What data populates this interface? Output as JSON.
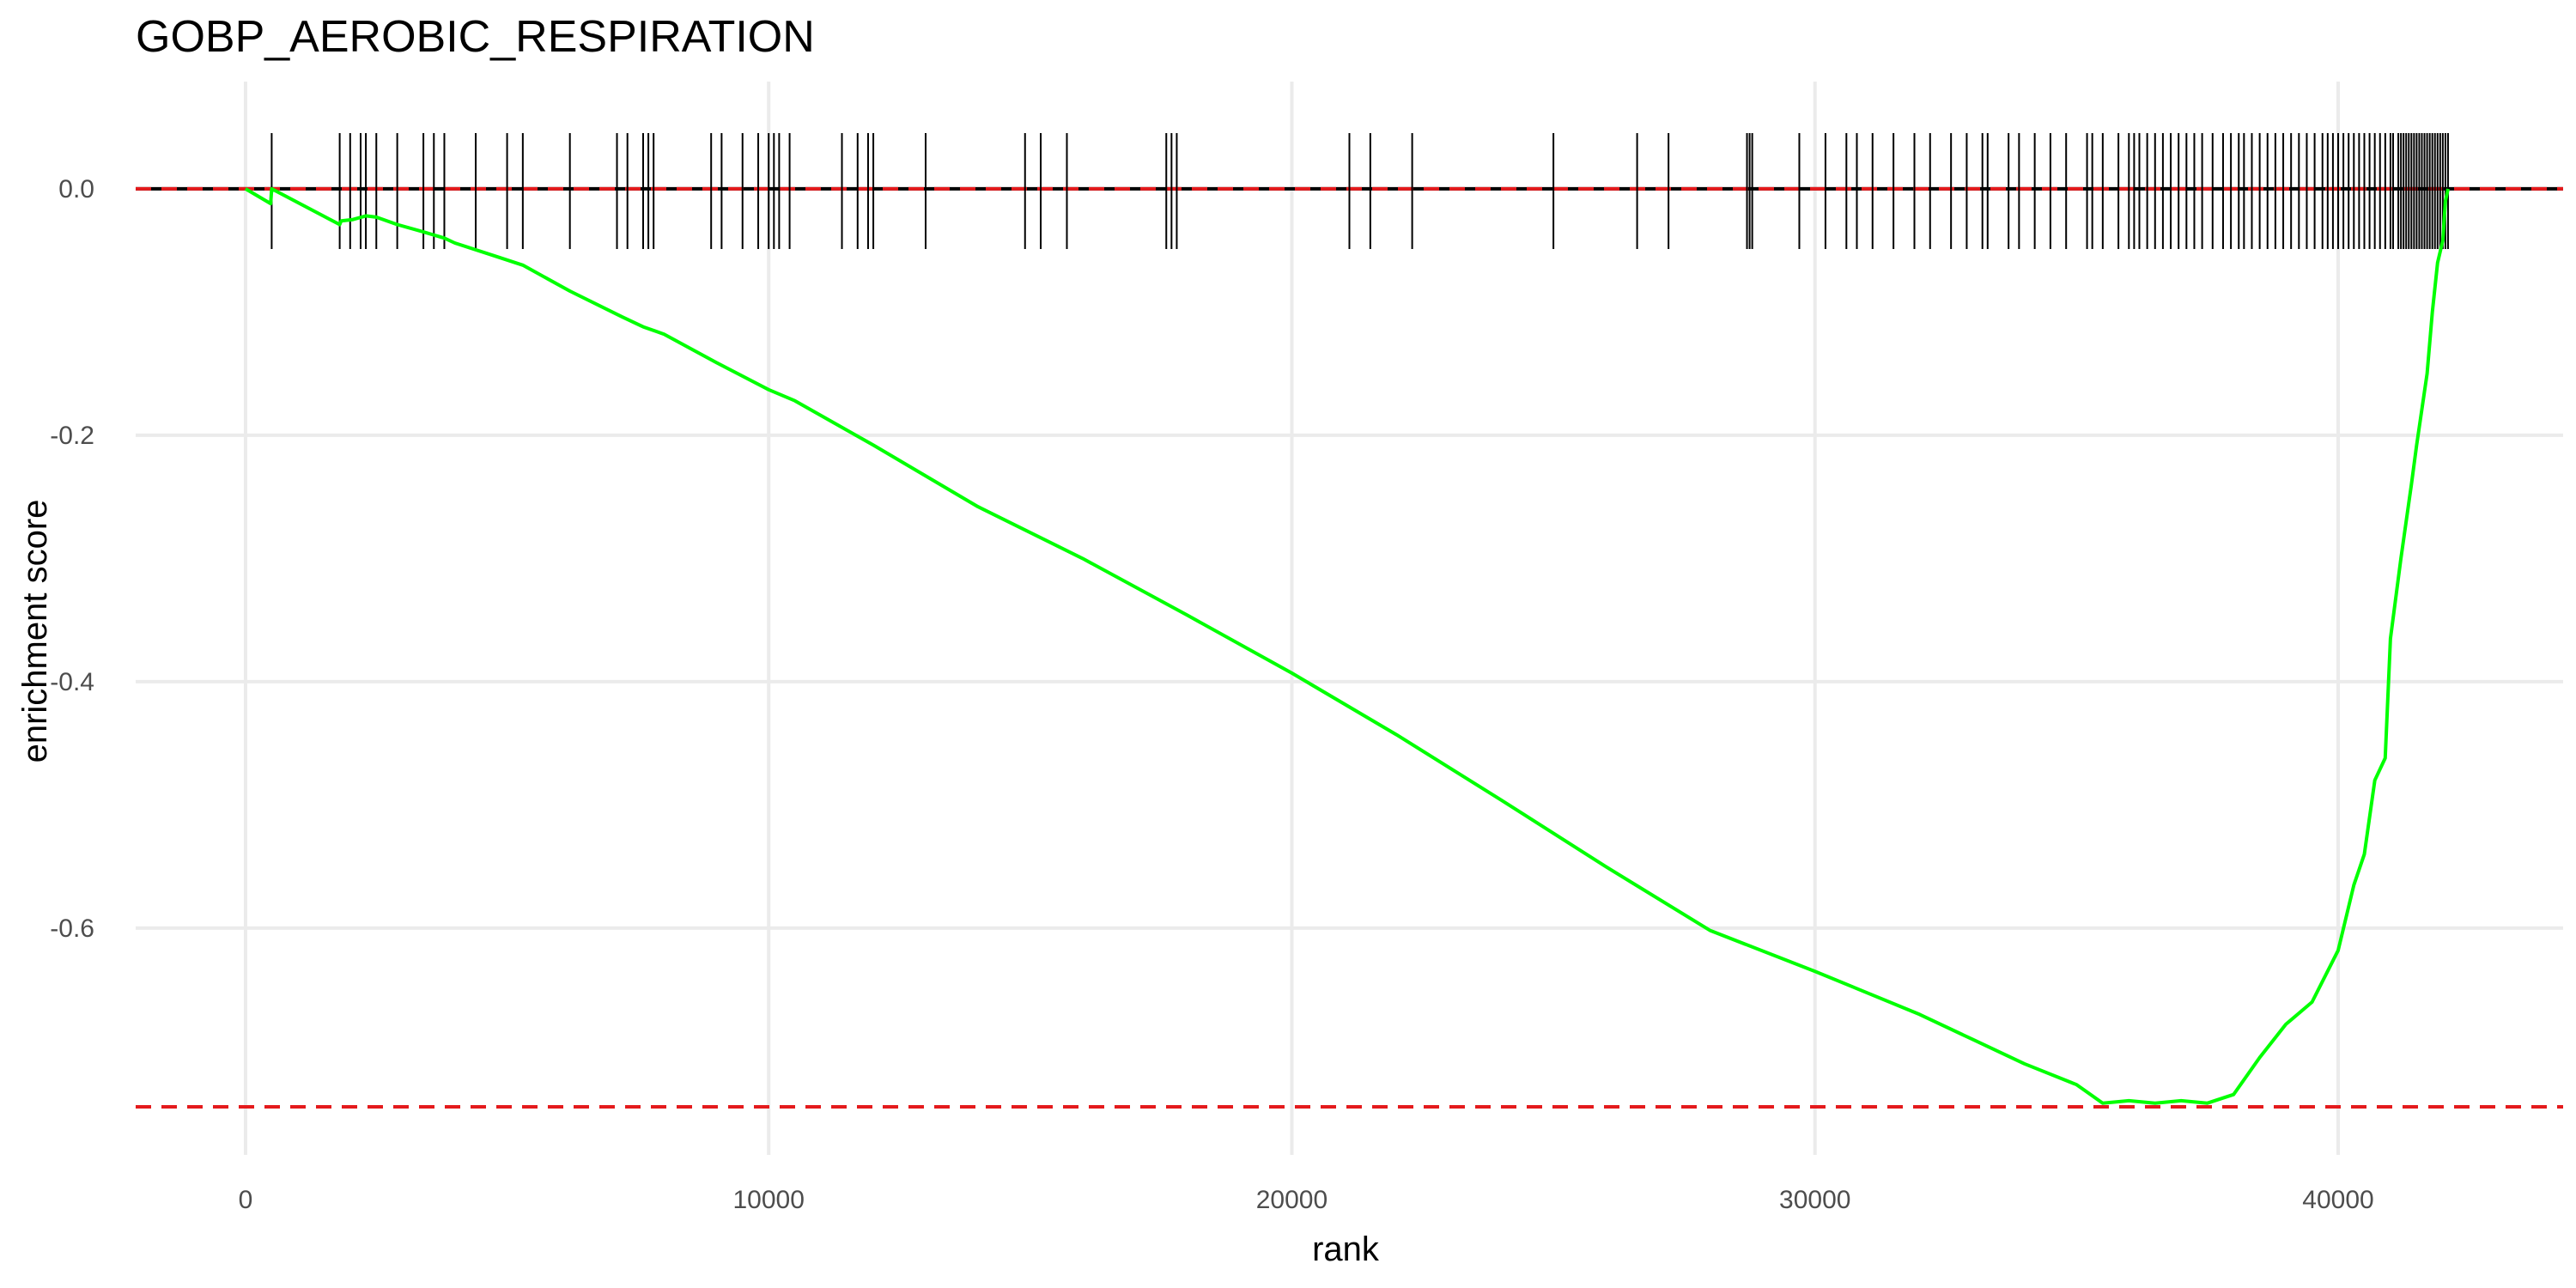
{
  "chart_data": {
    "type": "line",
    "title": "GOBP_AEROBIC_RESPIRATION",
    "xlabel": "rank",
    "ylabel": "enrichment score",
    "xlim": [
      -2100,
      44300
    ],
    "ylim": [
      -0.784,
      0.087
    ],
    "x_ticks": [
      0,
      10000,
      20000,
      30000,
      40000
    ],
    "x_tick_labels": [
      "0",
      "10000",
      "20000",
      "30000",
      "40000"
    ],
    "y_ticks": [
      0.0,
      -0.2,
      -0.4,
      -0.6
    ],
    "y_tick_labels": [
      "0.0",
      "-0.2",
      "-0.4",
      "-0.6"
    ],
    "grid": true,
    "reference_lines": [
      {
        "y": 0.0,
        "color": "#e41a1c",
        "style": "dashed"
      },
      {
        "y": -0.745,
        "color": "#e41a1c",
        "style": "dashed"
      }
    ],
    "zero_line": {
      "y": 0.0,
      "color": "#000000"
    },
    "series": [
      {
        "color": "#00ff00",
        "x": [
          0,
          480,
          500,
          1800,
          1830,
          2050,
          2300,
          2500,
          2900,
          3400,
          3800,
          4000,
          4800,
          5300,
          6200,
          7200,
          7600,
          8000,
          9000,
          10000,
          10500,
          12000,
          14000,
          16000,
          18000,
          20000,
          22000,
          24000,
          26000,
          28000,
          30000,
          32000,
          33000,
          34000,
          35000,
          35500,
          36000,
          36500,
          37000,
          37500,
          38000,
          38500,
          39000,
          39500,
          40000,
          40300,
          40500,
          40700,
          40900,
          41000,
          41200,
          41400,
          41500,
          41700,
          41800,
          41900,
          42000,
          42050,
          42100
        ],
        "y": [
          0.0,
          -0.012,
          0.0,
          -0.029,
          -0.026,
          -0.025,
          -0.022,
          -0.023,
          -0.029,
          -0.035,
          -0.04,
          -0.044,
          -0.055,
          -0.062,
          -0.083,
          -0.104,
          -0.112,
          -0.118,
          -0.141,
          -0.163,
          -0.172,
          -0.208,
          -0.258,
          -0.3,
          -0.346,
          -0.393,
          -0.443,
          -0.496,
          -0.55,
          -0.602,
          -0.635,
          -0.67,
          -0.69,
          -0.71,
          -0.727,
          -0.742,
          -0.74,
          -0.742,
          -0.74,
          -0.742,
          -0.735,
          -0.705,
          -0.678,
          -0.66,
          -0.618,
          -0.565,
          -0.54,
          -0.48,
          -0.462,
          -0.365,
          -0.3,
          -0.24,
          -0.208,
          -0.15,
          -0.1,
          -0.06,
          -0.042,
          -0.01,
          0.0
        ]
      }
    ],
    "hit_ranks": [
      500,
      1800,
      2000,
      2200,
      2300,
      2500,
      2900,
      3400,
      3600,
      3800,
      4400,
      5000,
      5300,
      6200,
      7100,
      7300,
      7600,
      7700,
      7800,
      8900,
      9100,
      9500,
      9800,
      10000,
      10100,
      10200,
      10400,
      11400,
      11700,
      11900,
      12000,
      13000,
      14900,
      15200,
      15700,
      17600,
      17700,
      17800,
      21100,
      21500,
      22300,
      25000,
      26600,
      27200,
      28700,
      28750,
      28800,
      29700,
      30200,
      30600,
      30800,
      31100,
      31500,
      31900,
      32200,
      32600,
      32900,
      33200,
      33300,
      33700,
      33900,
      34200,
      34500,
      34800,
      35200,
      35300,
      35500,
      35800,
      36000,
      36100,
      36200,
      36350,
      36500,
      36650,
      36800,
      36950,
      37100,
      37250,
      37400,
      37600,
      37800,
      37950,
      38100,
      38200,
      38350,
      38500,
      38650,
      38800,
      38950,
      39100,
      39250,
      39400,
      39550,
      39700,
      39800,
      39900,
      40000,
      40100,
      40200,
      40300,
      40400,
      40500,
      40600,
      40700,
      40800,
      40900,
      41000,
      41050,
      41150,
      41200,
      41250,
      41300,
      41350,
      41400,
      41450,
      41500,
      41550,
      41600,
      41650,
      41700,
      41750,
      41800,
      41850,
      41900,
      41950,
      42000,
      42050,
      42100
    ]
  }
}
